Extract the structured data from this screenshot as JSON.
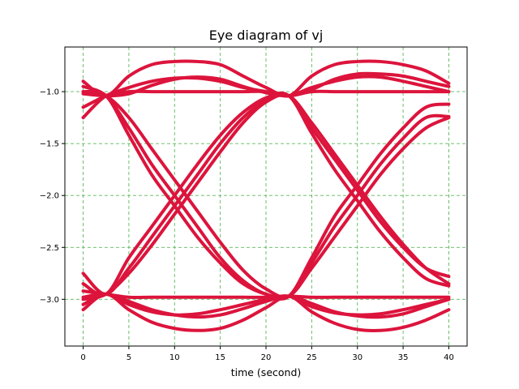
{
  "chart_data": {
    "type": "line",
    "title": "Eye diagram of vj",
    "xlabel": "time (second)",
    "ylabel": "",
    "xlim": [
      -2,
      42
    ],
    "ylim": [
      -3.45,
      -0.57
    ],
    "xticks": [
      0,
      5,
      10,
      15,
      20,
      25,
      30,
      35,
      40
    ],
    "xtick_labels": [
      "0",
      "5",
      "10",
      "15",
      "20",
      "25",
      "30",
      "35",
      "40"
    ],
    "yticks": [
      -3.0,
      -2.5,
      -2.0,
      -1.5,
      -1.0
    ],
    "ytick_labels": [
      "−3.0",
      "−2.5",
      "−2.0",
      "−1.5",
      "−1.0"
    ],
    "grid": true,
    "grid_color": "#5cb85c",
    "line_color": "#dc143c",
    "x": [
      0,
      2.5,
      5,
      7.5,
      10,
      12.5,
      15,
      17.5,
      20,
      22.5,
      25,
      27.5,
      30,
      32.5,
      35,
      37.5,
      40
    ],
    "series": [
      {
        "values": [
          -0.9,
          -1.04,
          -0.85,
          -0.74,
          -0.71,
          -0.71,
          -0.74,
          -0.85,
          -0.96,
          -1.04,
          -0.85,
          -0.74,
          -0.71,
          -0.71,
          -0.74,
          -0.8,
          -0.92
        ]
      },
      {
        "values": [
          -1.15,
          -1.04,
          -0.96,
          -0.9,
          -0.87,
          -0.87,
          -0.9,
          -0.96,
          -1.0,
          -1.04,
          -0.96,
          -0.9,
          -0.86,
          -0.86,
          -0.9,
          -0.95,
          -1.0
        ]
      },
      {
        "values": [
          -1.25,
          -1.04,
          -1.0,
          -1.0,
          -1.0,
          -1.0,
          -1.0,
          -1.0,
          -1.0,
          -1.04,
          -1.0,
          -1.0,
          -1.0,
          -1.0,
          -1.0,
          -1.0,
          -1.0
        ]
      },
      {
        "values": [
          -1.02,
          -1.04,
          -1.02,
          -0.94,
          -0.88,
          -0.86,
          -0.88,
          -0.95,
          -1.01,
          -1.04,
          -0.98,
          -0.88,
          -0.83,
          -0.83,
          -0.85,
          -0.9,
          -0.95
        ]
      },
      {
        "values": [
          -0.95,
          -1.04,
          -1.35,
          -1.7,
          -2.0,
          -2.3,
          -2.6,
          -2.82,
          -2.95,
          -2.97,
          -2.6,
          -2.2,
          -1.9,
          -1.6,
          -1.35,
          -1.15,
          -1.12
        ]
      },
      {
        "values": [
          -1.0,
          -1.04,
          -1.42,
          -1.8,
          -2.1,
          -2.4,
          -2.65,
          -2.85,
          -2.95,
          -2.97,
          -2.65,
          -2.3,
          -2.0,
          -1.7,
          -1.45,
          -1.25,
          -1.24
        ]
      },
      {
        "values": [
          -1.0,
          -1.04,
          -1.25,
          -1.55,
          -1.85,
          -2.15,
          -2.45,
          -2.72,
          -2.9,
          -2.97,
          -2.7,
          -2.4,
          -2.1,
          -1.8,
          -1.55,
          -1.35,
          -1.25
        ]
      },
      {
        "values": [
          -2.75,
          -2.95,
          -2.7,
          -2.4,
          -2.1,
          -1.8,
          -1.5,
          -1.25,
          -1.08,
          -1.04,
          -1.35,
          -1.65,
          -1.95,
          -2.25,
          -2.5,
          -2.7,
          -2.78
        ]
      },
      {
        "values": [
          -2.85,
          -2.95,
          -2.6,
          -2.3,
          -2.0,
          -1.7,
          -1.42,
          -1.2,
          -1.06,
          -1.04,
          -1.4,
          -1.75,
          -2.05,
          -2.35,
          -2.6,
          -2.8,
          -2.87
        ]
      },
      {
        "values": [
          -3.0,
          -2.95,
          -2.75,
          -2.48,
          -2.18,
          -1.88,
          -1.58,
          -1.3,
          -1.1,
          -1.04,
          -1.3,
          -1.6,
          -1.9,
          -2.2,
          -2.47,
          -2.7,
          -2.85
        ]
      },
      {
        "values": [
          -3.1,
          -2.95,
          -3.1,
          -3.22,
          -3.28,
          -3.3,
          -3.28,
          -3.2,
          -3.08,
          -2.97,
          -3.12,
          -3.23,
          -3.29,
          -3.3,
          -3.27,
          -3.2,
          -3.1
        ]
      },
      {
        "values": [
          -3.05,
          -2.95,
          -3.05,
          -3.12,
          -3.15,
          -3.14,
          -3.1,
          -3.05,
          -3.0,
          -2.97,
          -3.07,
          -3.13,
          -3.15,
          -3.14,
          -3.1,
          -3.05,
          -3.0
        ]
      },
      {
        "values": [
          -2.92,
          -2.95,
          -2.98,
          -2.98,
          -2.98,
          -2.98,
          -2.98,
          -2.98,
          -2.98,
          -2.97,
          -2.98,
          -2.98,
          -2.98,
          -2.98,
          -2.98,
          -2.98,
          -2.98
        ]
      },
      {
        "values": [
          -2.98,
          -2.95,
          -3.02,
          -3.1,
          -3.15,
          -3.17,
          -3.15,
          -3.09,
          -3.02,
          -2.97,
          -3.04,
          -3.12,
          -3.16,
          -3.17,
          -3.14,
          -3.07,
          -3.0
        ]
      }
    ]
  }
}
